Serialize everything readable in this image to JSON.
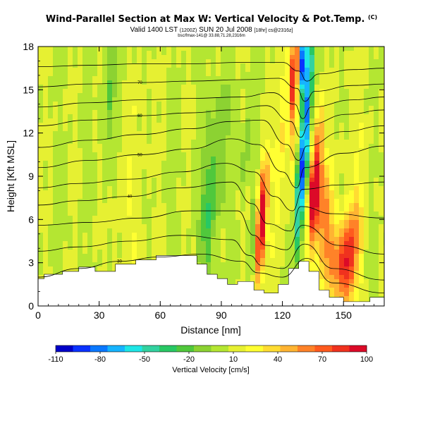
{
  "header": {
    "title": "Wind-Parallel Section at Max W: Vertical Velocity & Pot.Temp.",
    "title_mark": "(C)",
    "valid_text": "Valid 1400 LST",
    "valid_small1": "(1200Z)",
    "valid_date": "SUN 20 Jul 2008",
    "valid_small2": "[18hr] cs@2316z]",
    "subtitle": "bsc/fmax-141@ 33.88,71.28,2316m"
  },
  "chart_data": {
    "type": "heatmap",
    "xlabel": "Distance [nm]",
    "ylabel": "Height [Kft MSL]",
    "x_ticks": [
      0,
      30,
      60,
      90,
      120,
      150
    ],
    "y_ticks": [
      0,
      3,
      6,
      9,
      12,
      15,
      18
    ],
    "xlim": [
      0,
      170
    ],
    "ylim": [
      0,
      18
    ],
    "colorbar": {
      "label": "Vertical Velocity [cm/s]",
      "ticks": [
        -110,
        -80,
        -50,
        -20,
        10,
        40,
        70,
        100
      ],
      "range": [
        -110,
        100
      ],
      "colors": [
        "#0000c8",
        "#0a32ff",
        "#0a78ff",
        "#16b4ff",
        "#1ee6e6",
        "#32d2a0",
        "#28c864",
        "#50c83c",
        "#8cd232",
        "#b4e632",
        "#e6f032",
        "#ffff32",
        "#ffdc32",
        "#ffb432",
        "#ff8228",
        "#ff5a1e",
        "#f0321e",
        "#dc0a28"
      ]
    },
    "terrain_kft": [
      [
        0,
        1.9
      ],
      [
        3,
        1.9
      ],
      [
        3,
        2.2
      ],
      [
        12,
        2.2
      ],
      [
        12,
        2.4
      ],
      [
        20,
        2.4
      ],
      [
        20,
        2.7
      ],
      [
        28,
        2.7
      ],
      [
        28,
        2.4
      ],
      [
        38,
        2.4
      ],
      [
        38,
        2.9
      ],
      [
        48,
        2.9
      ],
      [
        48,
        3.2
      ],
      [
        58,
        3.2
      ],
      [
        58,
        3.5
      ],
      [
        78,
        3.5
      ],
      [
        78,
        2.9
      ],
      [
        83,
        2.9
      ],
      [
        83,
        2.2
      ],
      [
        88,
        2.2
      ],
      [
        88,
        1.9
      ],
      [
        93,
        1.9
      ],
      [
        93,
        1.5
      ],
      [
        98,
        1.5
      ],
      [
        98,
        1.7
      ],
      [
        106,
        1.7
      ],
      [
        106,
        1.1
      ],
      [
        111,
        1.1
      ],
      [
        111,
        0.9
      ],
      [
        118,
        0.9
      ],
      [
        118,
        1.5
      ],
      [
        123,
        1.5
      ],
      [
        123,
        2.6
      ],
      [
        128,
        2.6
      ],
      [
        128,
        3.1
      ],
      [
        133,
        3.1
      ],
      [
        133,
        2.4
      ],
      [
        138,
        2.4
      ],
      [
        138,
        1.1
      ],
      [
        143,
        1.1
      ],
      [
        143,
        0.6
      ],
      [
        150,
        0.6
      ],
      [
        150,
        0.3
      ],
      [
        163,
        0.3
      ],
      [
        163,
        0.6
      ],
      [
        170,
        0.6
      ]
    ],
    "velocity_features": [
      {
        "x": 35,
        "y": 15,
        "sx": 2.2,
        "sy": 4.0,
        "v": -22
      },
      {
        "x": 84,
        "y": 7,
        "sx": 2.6,
        "sy": 4.5,
        "v": -34
      },
      {
        "x": 90,
        "y": 11,
        "sx": 2.0,
        "sy": 3.5,
        "v": -20
      },
      {
        "x": 102,
        "y": 11,
        "sx": 1.8,
        "sy": 2.5,
        "v": -18
      },
      {
        "x": 106,
        "y": 5,
        "sx": 1.4,
        "sy": 2.5,
        "v": -30
      },
      {
        "x": 109,
        "y": 5,
        "sx": 1.6,
        "sy": 2.6,
        "v": 85
      },
      {
        "x": 111,
        "y": 7.5,
        "sx": 2.0,
        "sy": 2.5,
        "v": 40
      },
      {
        "x": 120,
        "y": 12,
        "sx": 2.0,
        "sy": 5.0,
        "v": 25
      },
      {
        "x": 128.5,
        "y": 8,
        "sx": 1.5,
        "sy": 3.2,
        "v": -65
      },
      {
        "x": 132,
        "y": 13.5,
        "sx": 1.6,
        "sy": 4.5,
        "v": -75
      },
      {
        "x": 130,
        "y": 17,
        "sx": 1.3,
        "sy": 1.5,
        "v": -100
      },
      {
        "x": 125.5,
        "y": 16,
        "sx": 1.3,
        "sy": 2.4,
        "v": 85
      },
      {
        "x": 126,
        "y": 12,
        "sx": 1.0,
        "sy": 4.0,
        "v": 30
      },
      {
        "x": 136.5,
        "y": 8.5,
        "sx": 2.0,
        "sy": 3.2,
        "v": 95
      },
      {
        "x": 134,
        "y": 7,
        "sx": 1.0,
        "sy": 2.0,
        "v": 40
      },
      {
        "x": 141,
        "y": 6,
        "sx": 2.5,
        "sy": 2.5,
        "v": 45
      },
      {
        "x": 151,
        "y": 2.8,
        "sx": 3.2,
        "sy": 2.2,
        "v": 78
      },
      {
        "x": 156,
        "y": 5,
        "sx": 3.0,
        "sy": 2.5,
        "v": 30
      },
      {
        "x": 144,
        "y": 3,
        "sx": 3.0,
        "sy": 2.0,
        "v": 32
      },
      {
        "x": 155,
        "y": 11,
        "sx": 6.0,
        "sy": 5.0,
        "v": 6
      },
      {
        "x": 45,
        "y": 7,
        "sx": 6.0,
        "sy": 6.0,
        "v": 10
      }
    ],
    "theta_contours": [
      {
        "label": "30",
        "pts": [
          [
            0,
            2.0
          ],
          [
            20,
            2.6
          ],
          [
            40,
            3.1
          ],
          [
            60,
            3.4
          ],
          [
            80,
            3.6
          ],
          [
            100,
            3.1
          ],
          [
            108,
            2.3
          ],
          [
            120,
            2.0
          ],
          [
            132,
            3.3
          ],
          [
            145,
            1.6
          ],
          [
            170,
            0.9
          ]
        ]
      },
      {
        "label": "",
        "pts": [
          [
            0,
            3.8
          ],
          [
            20,
            4.1
          ],
          [
            45,
            4.5
          ],
          [
            70,
            4.9
          ],
          [
            95,
            4.6
          ],
          [
            104,
            3.5
          ],
          [
            110,
            2.8
          ],
          [
            120,
            2.6
          ],
          [
            131,
            4.3
          ],
          [
            145,
            2.6
          ],
          [
            170,
            1.8
          ]
        ]
      },
      {
        "label": "",
        "pts": [
          [
            0,
            5.6
          ],
          [
            25,
            5.8
          ],
          [
            50,
            6.1
          ],
          [
            75,
            6.6
          ],
          [
            98,
            6.6
          ],
          [
            106,
            4.9
          ],
          [
            112,
            4.2
          ],
          [
            122,
            3.9
          ],
          [
            130,
            5.6
          ],
          [
            148,
            4.2
          ],
          [
            170,
            3.6
          ]
        ]
      },
      {
        "label": "40",
        "pts": [
          [
            0,
            7.0
          ],
          [
            20,
            7.3
          ],
          [
            45,
            7.6
          ],
          [
            70,
            8.2
          ],
          [
            95,
            8.6
          ],
          [
            105,
            7.1
          ],
          [
            113,
            5.7
          ],
          [
            124,
            5.2
          ],
          [
            129,
            6.9
          ],
          [
            145,
            6.4
          ],
          [
            170,
            6.1
          ]
        ]
      },
      {
        "label": "",
        "pts": [
          [
            0,
            8.2
          ],
          [
            20,
            8.5
          ],
          [
            45,
            8.8
          ],
          [
            70,
            9.3
          ],
          [
            92,
            9.9
          ],
          [
            106,
            9.3
          ],
          [
            116,
            7.6
          ],
          [
            125,
            6.6
          ],
          [
            130,
            8.1
          ],
          [
            148,
            8.4
          ],
          [
            170,
            8.6
          ]
        ]
      },
      {
        "label": "50",
        "pts": [
          [
            0,
            9.6
          ],
          [
            25,
            10.1
          ],
          [
            50,
            10.5
          ],
          [
            75,
            10.9
          ],
          [
            95,
            11.6
          ],
          [
            108,
            11.2
          ],
          [
            120,
            9.3
          ],
          [
            127,
            8.2
          ],
          [
            131,
            9.6
          ],
          [
            150,
            10.6
          ],
          [
            170,
            11.1
          ]
        ]
      },
      {
        "label": "",
        "pts": [
          [
            0,
            11.0
          ],
          [
            25,
            11.5
          ],
          [
            50,
            11.9
          ],
          [
            75,
            12.3
          ],
          [
            95,
            12.8
          ],
          [
            110,
            12.9
          ],
          [
            122,
            11.2
          ],
          [
            128,
            10.1
          ],
          [
            132,
            11.1
          ],
          [
            150,
            12.1
          ],
          [
            170,
            12.5
          ]
        ]
      },
      {
        "label": "60",
        "pts": [
          [
            0,
            12.5
          ],
          [
            25,
            12.9
          ],
          [
            50,
            13.2
          ],
          [
            75,
            13.4
          ],
          [
            95,
            13.6
          ],
          [
            112,
            13.9
          ],
          [
            124,
            12.8
          ],
          [
            129,
            11.7
          ],
          [
            133,
            12.6
          ],
          [
            152,
            13.3
          ],
          [
            170,
            13.6
          ]
        ]
      },
      {
        "label": "",
        "pts": [
          [
            0,
            13.8
          ],
          [
            25,
            14.1
          ],
          [
            50,
            14.3
          ],
          [
            75,
            14.4
          ],
          [
            100,
            14.5
          ],
          [
            115,
            14.8
          ],
          [
            126,
            14.0
          ],
          [
            130,
            13.0
          ],
          [
            134,
            13.8
          ],
          [
            155,
            14.3
          ],
          [
            170,
            14.5
          ]
        ]
      },
      {
        "label": "70",
        "pts": [
          [
            0,
            15.2
          ],
          [
            25,
            15.4
          ],
          [
            50,
            15.5
          ],
          [
            75,
            15.6
          ],
          [
            100,
            15.7
          ],
          [
            118,
            15.8
          ],
          [
            127,
            15.1
          ],
          [
            131,
            14.2
          ],
          [
            136,
            14.9
          ],
          [
            155,
            15.3
          ],
          [
            170,
            15.4
          ]
        ]
      },
      {
        "label": "",
        "pts": [
          [
            0,
            16.6
          ],
          [
            25,
            16.7
          ],
          [
            50,
            16.8
          ],
          [
            75,
            16.8
          ],
          [
            100,
            16.9
          ],
          [
            120,
            16.9
          ],
          [
            128,
            16.3
          ],
          [
            132,
            15.6
          ],
          [
            138,
            16.1
          ],
          [
            155,
            16.4
          ],
          [
            170,
            16.5
          ]
        ]
      }
    ]
  }
}
